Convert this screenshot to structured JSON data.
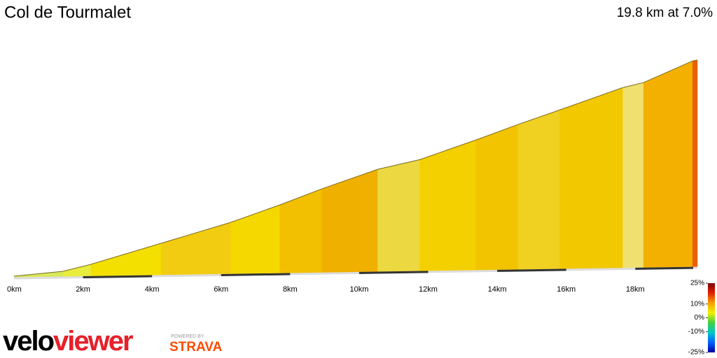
{
  "chart_data": {
    "type": "climb-profile",
    "title": "Col de Tourmalet",
    "subtitle": "19.8 km at 7.0%",
    "x": [
      0,
      1.42,
      2.23,
      4.26,
      6.28,
      7.7,
      8.92,
      10.54,
      11.76,
      13.38,
      14.6,
      15.81,
      17.64,
      18.24,
      19.66,
      19.8
    ],
    "values": [
      859,
      890,
      935,
      1069,
      1203,
      1314,
      1417,
      1542,
      1604,
      1729,
      1828,
      1921,
      2064,
      2096,
      2234,
      2240
    ],
    "segment_colors": [
      "#d8e85a",
      "#e8ec3c",
      "#f4e000",
      "#f2cc10",
      "#f5d800",
      "#f2c000",
      "#f0b000",
      "#ecd840",
      "#f4d000",
      "#f2c400",
      "#f0d020",
      "#f2c800",
      "#f0e070",
      "#f4b000",
      "#e86000"
    ],
    "xlim": [
      0,
      19.8
    ],
    "ylim": [
      850,
      2250
    ],
    "xticks": [
      {
        "value": 0,
        "label": "0km"
      },
      {
        "value": 2,
        "label": "2km"
      },
      {
        "value": 4,
        "label": "4km"
      },
      {
        "value": 6,
        "label": "6km"
      },
      {
        "value": 8,
        "label": "8km"
      },
      {
        "value": 10,
        "label": "10km"
      },
      {
        "value": 12,
        "label": "12km"
      },
      {
        "value": 14,
        "label": "14km"
      },
      {
        "value": 16,
        "label": "16km"
      },
      {
        "value": 18,
        "label": "18km"
      }
    ],
    "colorbar": {
      "lim": [
        -25,
        25
      ],
      "colors": [
        "#0000a0",
        "#0060ff",
        "#00c8c8",
        "#40d040",
        "#f0f000",
        "#f8a000",
        "#e02000",
        "#800000"
      ],
      "ticks": [
        {
          "value": 25,
          "label": "25%"
        },
        {
          "value": 10,
          "label": "10%"
        },
        {
          "value": 0,
          "label": "0%"
        },
        {
          "value": -10,
          "label": "-10%"
        },
        {
          "value": -25,
          "label": "-25%"
        }
      ]
    }
  },
  "logo": {
    "velo": "velo",
    "viewer": "viewer",
    "powered_by": "POWERED BY",
    "strava": "STRAVA"
  }
}
